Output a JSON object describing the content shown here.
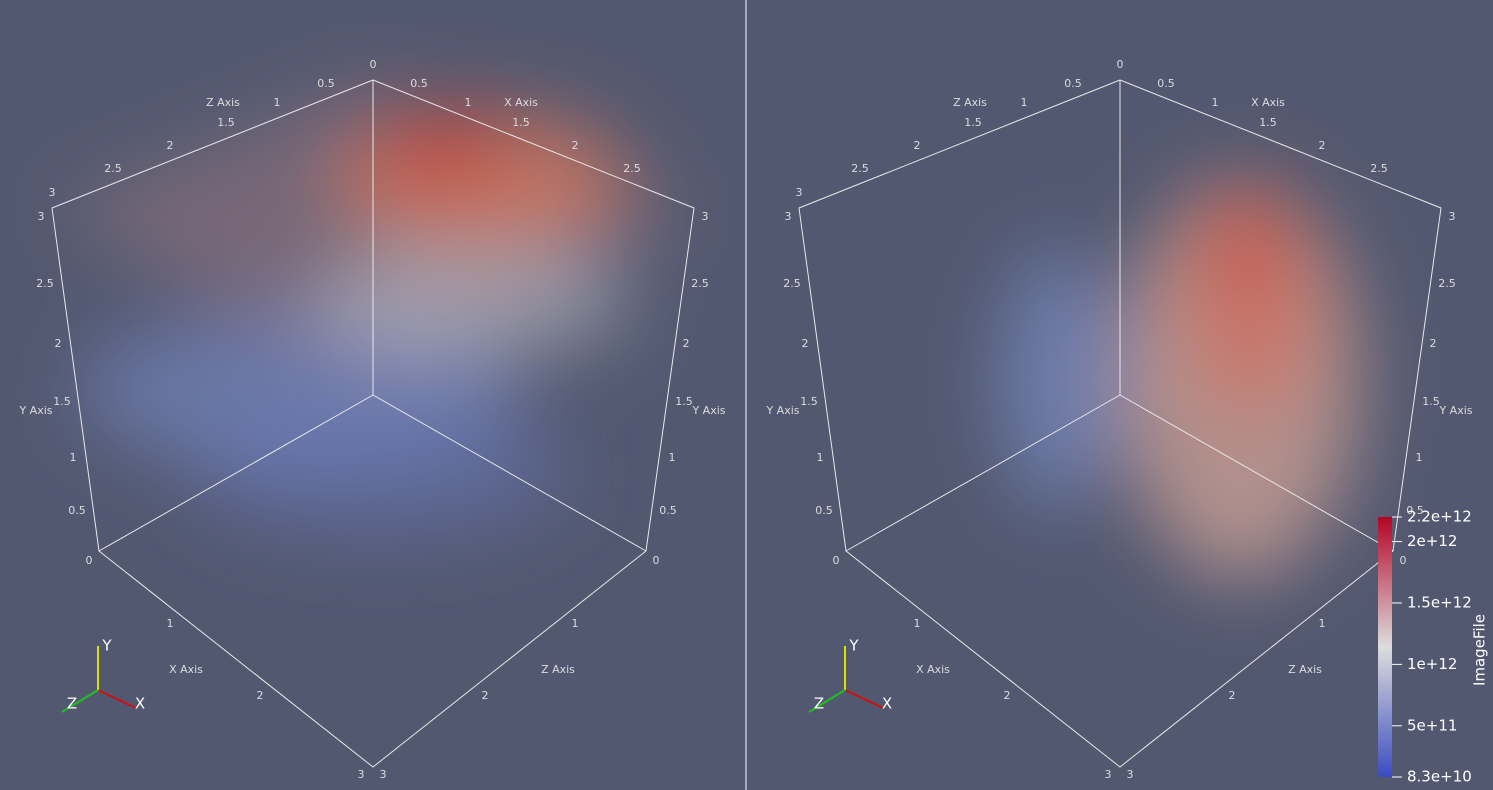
{
  "views": [
    {
      "labels": [
        "0",
        "0.5",
        "1",
        "1.5",
        "2",
        "2.5",
        "3",
        "Z Axis",
        "0.5",
        "1",
        "1.5",
        "2",
        "2.5",
        "3",
        "X Axis",
        "3",
        "2.5",
        "2",
        "1.5",
        "1",
        "0.5",
        "0",
        "Y Axis",
        "2.5",
        "2",
        "1.5",
        "1",
        "0.5",
        "0",
        "Y Axis",
        "1",
        "2",
        "3",
        "X Axis",
        "1",
        "2",
        "3",
        "Z Axis"
      ],
      "orientation": [
        "X",
        "Y",
        "Z"
      ]
    },
    {
      "labels": [
        "0",
        "0.5",
        "1",
        "1.5",
        "2",
        "2.5",
        "3",
        "Z Axis",
        "0.5",
        "1",
        "1.5",
        "2",
        "2.5",
        "3",
        "X Axis",
        "3",
        "2.5",
        "2",
        "1.5",
        "1",
        "0.5",
        "0",
        "Y Axis",
        "2.5",
        "2",
        "1.5",
        "1",
        "0.5",
        "0",
        "Y Axis",
        "1",
        "2",
        "3",
        "X Axis",
        "1",
        "2",
        "3",
        "Z Axis"
      ],
      "orientation": [
        "X",
        "Y",
        "Z"
      ]
    }
  ],
  "colorbar": {
    "title": "ImageFile",
    "range": [
      {
        "value": 83000000000,
        "label": "8.3e+10"
      },
      {
        "value": 2200000000000,
        "label": "2.2e+12"
      }
    ],
    "ticks": [
      {
        "value": 2000000000000,
        "label": "2e+12"
      },
      {
        "value": 1500000000000,
        "label": "1.5e+12"
      },
      {
        "value": 1000000000000,
        "label": "1e+12"
      },
      {
        "value": 500000000000,
        "label": "5e+11"
      }
    ],
    "colors": [
      "#3b4cc0",
      "#dddddd",
      "#b40426"
    ]
  }
}
